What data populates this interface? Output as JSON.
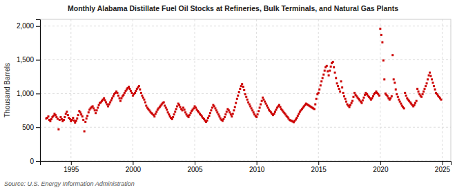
{
  "chart_data": {
    "type": "scatter",
    "title": "Monthly Alabama Distillate Fuel Oil Stocks at Refineries, Bulk Terminals, and Natural Gas Plants",
    "ylabel": "Thousand Barrels",
    "source": "Source: U.S. Energy Information Administration",
    "color": "#CC0000",
    "marker": "square",
    "grid": true,
    "xlim": [
      1992.5,
      2025.7
    ],
    "xticks": [
      1995,
      2000,
      2005,
      2010,
      2015,
      2020,
      2025
    ],
    "ylim": [
      0,
      2100
    ],
    "yticks": [
      0,
      500,
      {
        "value": 1000,
        "label": "1,000"
      },
      {
        "value": 1500,
        "label": "1,500"
      },
      {
        "value": 2000,
        "label": "2,000"
      }
    ],
    "x": [
      1993.0,
      1993.08,
      1993.17,
      1993.25,
      1993.33,
      1993.42,
      1993.5,
      1993.58,
      1993.67,
      1993.75,
      1993.83,
      1993.92,
      1994.0,
      1994.08,
      1994.17,
      1994.25,
      1994.33,
      1994.42,
      1994.5,
      1994.58,
      1994.67,
      1994.75,
      1994.83,
      1994.92,
      1995.0,
      1995.08,
      1995.17,
      1995.25,
      1995.33,
      1995.42,
      1995.5,
      1995.58,
      1995.67,
      1995.75,
      1995.83,
      1995.92,
      1996.0,
      1996.08,
      1996.17,
      1996.25,
      1996.33,
      1996.42,
      1996.5,
      1996.58,
      1996.67,
      1996.75,
      1996.83,
      1996.92,
      1997.0,
      1997.08,
      1997.17,
      1997.25,
      1997.33,
      1997.42,
      1997.5,
      1997.58,
      1997.67,
      1997.75,
      1997.83,
      1997.92,
      1998.0,
      1998.08,
      1998.17,
      1998.25,
      1998.33,
      1998.42,
      1998.5,
      1998.58,
      1998.67,
      1998.75,
      1998.83,
      1998.92,
      1999.0,
      1999.08,
      1999.17,
      1999.25,
      1999.33,
      1999.42,
      1999.5,
      1999.58,
      1999.67,
      1999.75,
      1999.83,
      1999.92,
      2000.0,
      2000.08,
      2000.17,
      2000.25,
      2000.33,
      2000.42,
      2000.5,
      2000.58,
      2000.67,
      2000.75,
      2000.83,
      2000.92,
      2001.0,
      2001.08,
      2001.17,
      2001.25,
      2001.33,
      2001.42,
      2001.5,
      2001.58,
      2001.67,
      2001.75,
      2001.83,
      2001.92,
      2002.0,
      2002.08,
      2002.17,
      2002.25,
      2002.33,
      2002.42,
      2002.5,
      2002.58,
      2002.67,
      2002.75,
      2002.83,
      2002.92,
      2003.0,
      2003.08,
      2003.17,
      2003.25,
      2003.33,
      2003.42,
      2003.5,
      2003.58,
      2003.67,
      2003.75,
      2003.83,
      2003.92,
      2004.0,
      2004.08,
      2004.17,
      2004.25,
      2004.33,
      2004.42,
      2004.5,
      2004.58,
      2004.67,
      2004.75,
      2004.83,
      2004.92,
      2005.0,
      2005.08,
      2005.17,
      2005.25,
      2005.33,
      2005.42,
      2005.5,
      2005.58,
      2005.67,
      2005.75,
      2005.83,
      2005.92,
      2006.0,
      2006.08,
      2006.17,
      2006.25,
      2006.33,
      2006.42,
      2006.5,
      2006.58,
      2006.67,
      2006.75,
      2006.83,
      2006.92,
      2007.0,
      2007.08,
      2007.17,
      2007.25,
      2007.33,
      2007.42,
      2007.5,
      2007.58,
      2007.67,
      2007.75,
      2007.83,
      2007.92,
      2008.0,
      2008.08,
      2008.17,
      2008.25,
      2008.33,
      2008.42,
      2008.5,
      2008.58,
      2008.67,
      2008.75,
      2008.83,
      2008.92,
      2009.0,
      2009.08,
      2009.17,
      2009.25,
      2009.33,
      2009.42,
      2009.5,
      2009.58,
      2009.67,
      2009.75,
      2009.83,
      2009.92,
      2010.0,
      2010.08,
      2010.17,
      2010.25,
      2010.33,
      2010.42,
      2010.5,
      2010.58,
      2010.67,
      2010.75,
      2010.83,
      2010.92,
      2011.0,
      2011.08,
      2011.17,
      2011.25,
      2011.33,
      2011.42,
      2011.5,
      2011.58,
      2011.67,
      2011.75,
      2011.83,
      2011.92,
      2012.0,
      2012.08,
      2012.17,
      2012.25,
      2012.33,
      2012.42,
      2012.5,
      2012.58,
      2012.67,
      2012.75,
      2012.83,
      2012.92,
      2013.0,
      2013.08,
      2013.17,
      2013.25,
      2013.33,
      2013.42,
      2013.5,
      2013.58,
      2013.67,
      2013.75,
      2013.83,
      2013.92,
      2014.0,
      2014.08,
      2014.17,
      2014.25,
      2014.33,
      2014.42,
      2014.5,
      2014.58,
      2014.67,
      2014.75,
      2014.83,
      2014.92,
      2015.0,
      2015.08,
      2015.17,
      2015.25,
      2015.33,
      2015.42,
      2015.5,
      2015.58,
      2015.67,
      2015.75,
      2015.83,
      2015.92,
      2016.0,
      2016.08,
      2016.17,
      2016.25,
      2016.33,
      2016.42,
      2016.5,
      2016.58,
      2016.67,
      2016.75,
      2016.83,
      2016.92,
      2017.0,
      2017.08,
      2017.17,
      2017.25,
      2017.33,
      2017.42,
      2017.5,
      2017.58,
      2017.67,
      2017.75,
      2017.83,
      2017.92,
      2018.0,
      2018.08,
      2018.17,
      2018.25,
      2018.33,
      2018.42,
      2018.5,
      2018.58,
      2018.67,
      2018.75,
      2018.83,
      2018.92,
      2019.0,
      2019.08,
      2019.17,
      2019.25,
      2019.33,
      2019.42,
      2019.5,
      2019.58,
      2019.67,
      2019.75,
      2019.83,
      2019.92,
      2020.0,
      2020.08,
      2020.17,
      2020.25,
      2020.33,
      2020.42,
      2020.5,
      2020.58,
      2020.67,
      2020.75,
      2020.83,
      2020.92,
      2021.0,
      2021.08,
      2021.17,
      2021.25,
      2021.33,
      2021.42,
      2021.5,
      2021.58,
      2021.67,
      2021.75,
      2021.83,
      2021.92,
      2022.0,
      2022.08,
      2022.17,
      2022.25,
      2022.33,
      2022.42,
      2022.5,
      2022.58,
      2022.67,
      2022.75,
      2022.83,
      2022.92,
      2023.0,
      2023.08,
      2023.17,
      2023.25,
      2023.33,
      2023.42,
      2023.5,
      2023.58,
      2023.67,
      2023.75,
      2023.83,
      2023.92,
      2024.0,
      2024.08,
      2024.17,
      2024.25,
      2024.33,
      2024.42,
      2024.5,
      2024.58,
      2024.67,
      2024.75,
      2024.83,
      2024.92
    ],
    "values": [
      630,
      640,
      660,
      610,
      590,
      620,
      650,
      670,
      700,
      680,
      650,
      625,
      470,
      610,
      650,
      620,
      590,
      610,
      650,
      700,
      730,
      680,
      640,
      620,
      590,
      610,
      640,
      600,
      570,
      595,
      630,
      680,
      740,
      720,
      690,
      660,
      610,
      440,
      580,
      630,
      670,
      720,
      760,
      780,
      800,
      810,
      780,
      750,
      710,
      750,
      790,
      830,
      860,
      870,
      890,
      910,
      930,
      900,
      870,
      840,
      810,
      840,
      870,
      900,
      930,
      960,
      990,
      1010,
      1030,
      1010,
      970,
      930,
      890,
      930,
      960,
      980,
      1010,
      1040,
      1060,
      1080,
      1100,
      1070,
      1040,
      1010,
      970,
      990,
      1010,
      1040,
      1070,
      1090,
      1110,
      1060,
      1010,
      970,
      940,
      910,
      870,
      820,
      790,
      770,
      750,
      730,
      710,
      700,
      680,
      660,
      700,
      730,
      760,
      780,
      800,
      820,
      840,
      860,
      870,
      820,
      790,
      760,
      720,
      690,
      660,
      640,
      620,
      650,
      690,
      730,
      770,
      810,
      850,
      830,
      800,
      770,
      750,
      790,
      760,
      720,
      690,
      670,
      650,
      680,
      710,
      740,
      760,
      780,
      810,
      790,
      760,
      740,
      720,
      700,
      680,
      660,
      640,
      620,
      600,
      580,
      600,
      640,
      670,
      710,
      750,
      790,
      830,
      810,
      780,
      750,
      720,
      690,
      660,
      630,
      610,
      595,
      620,
      650,
      690,
      730,
      770,
      750,
      720,
      690,
      660,
      700,
      750,
      800,
      860,
      920,
      970,
      1020,
      1070,
      1110,
      1140,
      1100,
      1050,
      990,
      950,
      910,
      870,
      840,
      810,
      780,
      750,
      720,
      690,
      670,
      650,
      690,
      740,
      790,
      840,
      890,
      940,
      910,
      880,
      850,
      820,
      790,
      760,
      740,
      720,
      700,
      680,
      700,
      730,
      760,
      790,
      810,
      830,
      800,
      770,
      750,
      730,
      710,
      690,
      670,
      650,
      630,
      610,
      600,
      595,
      585,
      575,
      595,
      615,
      640,
      670,
      700,
      730,
      750,
      770,
      790,
      810,
      830,
      850,
      840,
      830,
      820,
      810,
      800,
      790,
      780,
      770,
      840,
      920,
      990,
      1010,
      1060,
      1120,
      1180,
      1230,
      1280,
      1340,
      1390,
      1410,
      1330,
      1270,
      1340,
      1400,
      1450,
      1470,
      1390,
      1310,
      1230,
      1150,
      1110,
      1070,
      1030,
      1180,
      1090,
      1010,
      960,
      920,
      880,
      840,
      820,
      800,
      830,
      860,
      890,
      950,
      1010,
      980,
      960,
      940,
      920,
      900,
      880,
      860,
      900,
      940,
      980,
      1010,
      990,
      970,
      950,
      930,
      910,
      930,
      960,
      990,
      1010,
      1030,
      1010,
      990,
      970,
      1960,
      1870,
      1760,
      1490,
      1210,
      1000,
      980,
      960,
      930,
      910,
      930,
      960,
      1570,
      1210,
      1160,
      1060,
      990,
      950,
      910,
      880,
      850,
      820,
      800,
      780,
      1010,
      970,
      930,
      910,
      890,
      870,
      850,
      830,
      810,
      830,
      860,
      890,
      1070,
      1030,
      990,
      970,
      950,
      990,
      1030,
      1070,
      1110,
      1150,
      1210,
      1270,
      1310,
      1260,
      1210,
      1160,
      1110,
      1060,
      1010,
      990,
      970,
      950,
      930,
      910
    ]
  }
}
